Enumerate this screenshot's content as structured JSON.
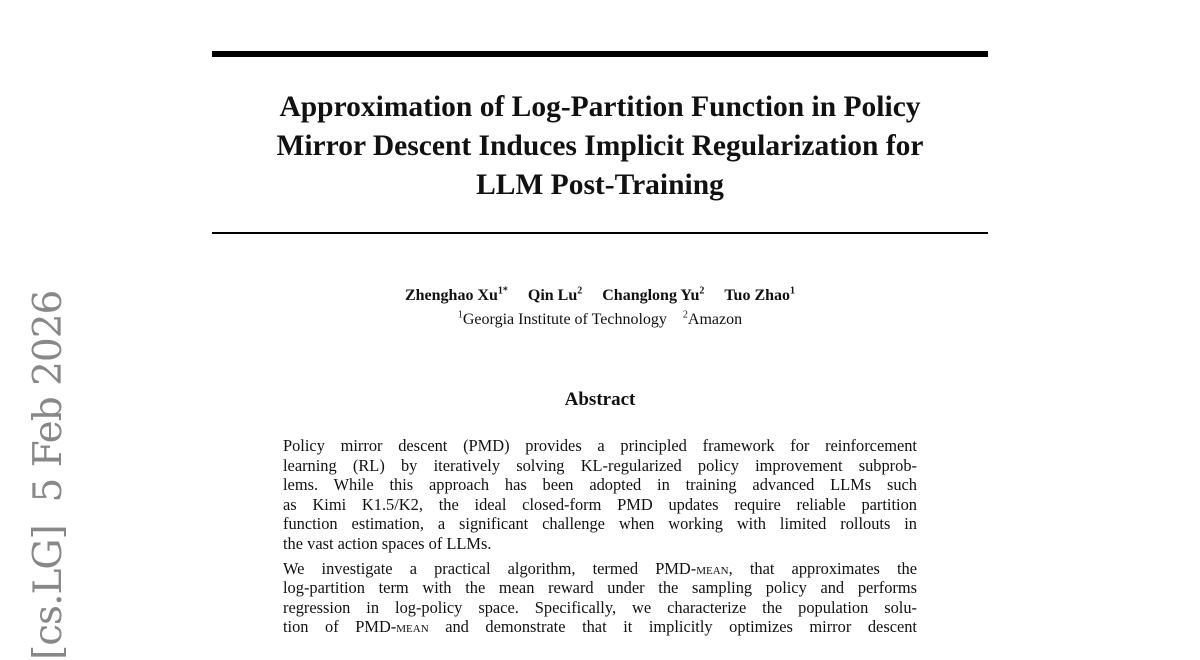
{
  "title_lines": [
    "Approximation of Log-Partition Function in Policy",
    "Mirror Descent Induces Implicit Regularization for",
    "LLM Post-Training"
  ],
  "authors": [
    {
      "name": "Zhenghao Xu",
      "sup": "1*"
    },
    {
      "name": "Qin Lu",
      "sup": "2"
    },
    {
      "name": "Changlong Yu",
      "sup": "2"
    },
    {
      "name": "Tuo Zhao",
      "sup": "1"
    }
  ],
  "affiliations": [
    {
      "sup": "1",
      "name": "Georgia Institute of Technology"
    },
    {
      "sup": "2",
      "name": "Amazon"
    }
  ],
  "abstract_heading": "Abstract",
  "abstract_p1_lines": [
    "Policy mirror descent (PMD) provides a principled framework for reinforcement",
    "learning (RL) by iteratively solving KL-regularized policy improvement subprob-",
    "lems.  While this approach has been adopted in training advanced LLMs such",
    "as Kimi K1.5/K2, the ideal closed-form PMD updates require reliable partition",
    "function estimation, a significant challenge when working with limited rollouts in",
    "the vast action spaces of LLMs."
  ],
  "abstract_p2": {
    "l1_pre": "We investigate a practical algorithm, termed PMD-",
    "l1_sc": "mean",
    "l1_post": ", that approximates the",
    "l2": "log-partition term with the mean reward under the sampling policy and performs",
    "l3": "regression in log-policy space. Specifically, we characterize the population solu-",
    "l4_pre": "tion of PMD-",
    "l4_sc": "mean",
    "l4_post": " and demonstrate that it implicitly optimizes mirror descent"
  },
  "arxiv_stamp": "[cs.LG]  5 Feb 2026"
}
